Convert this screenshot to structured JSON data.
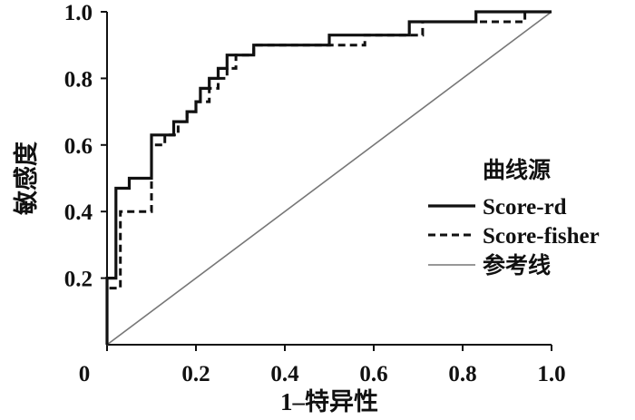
{
  "chart_data": {
    "type": "line",
    "title": "",
    "xlabel": "1–特异性",
    "ylabel": "敏感度",
    "xlim": [
      0,
      1
    ],
    "ylim": [
      0,
      1
    ],
    "x_ticks": [
      "0",
      "0.2",
      "0.4",
      "0.6",
      "0.8",
      "1.0"
    ],
    "y_ticks": [
      "0.2",
      "0.4",
      "0.6",
      "0.8",
      "1.0"
    ],
    "legend_title": "曲线源",
    "legend_position": "right",
    "grid": false,
    "series": [
      {
        "name": "Score-rd",
        "style": "solid",
        "color": "#111111",
        "x": [
          0.0,
          0.0,
          0.02,
          0.02,
          0.05,
          0.05,
          0.1,
          0.1,
          0.15,
          0.15,
          0.18,
          0.18,
          0.2,
          0.2,
          0.21,
          0.21,
          0.23,
          0.23,
          0.25,
          0.25,
          0.27,
          0.27,
          0.29,
          0.29,
          0.31,
          0.31,
          0.33,
          0.33,
          0.5,
          0.5,
          0.68,
          0.68,
          0.83,
          0.83,
          1.0
        ],
        "y": [
          0.0,
          0.2,
          0.2,
          0.47,
          0.47,
          0.5,
          0.5,
          0.63,
          0.63,
          0.67,
          0.67,
          0.7,
          0.7,
          0.73,
          0.73,
          0.77,
          0.77,
          0.8,
          0.8,
          0.83,
          0.83,
          0.87,
          0.87,
          0.87,
          0.87,
          0.87,
          0.87,
          0.9,
          0.9,
          0.93,
          0.93,
          0.97,
          0.97,
          1.0,
          1.0
        ]
      },
      {
        "name": "Score-fisher",
        "style": "dashed",
        "color": "#111111",
        "x": [
          0.0,
          0.0,
          0.03,
          0.03,
          0.1,
          0.1,
          0.13,
          0.13,
          0.16,
          0.16,
          0.18,
          0.18,
          0.2,
          0.2,
          0.23,
          0.23,
          0.25,
          0.25,
          0.27,
          0.27,
          0.29,
          0.29,
          0.33,
          0.33,
          0.58,
          0.58,
          0.63,
          0.63,
          0.71,
          0.71,
          0.94,
          0.94,
          1.0
        ],
        "y": [
          0.0,
          0.17,
          0.17,
          0.4,
          0.4,
          0.6,
          0.6,
          0.63,
          0.63,
          0.67,
          0.67,
          0.7,
          0.7,
          0.73,
          0.73,
          0.77,
          0.77,
          0.8,
          0.8,
          0.83,
          0.83,
          0.87,
          0.87,
          0.9,
          0.9,
          0.93,
          0.93,
          0.93,
          0.93,
          0.97,
          0.97,
          1.0,
          1.0
        ]
      },
      {
        "name": "参考线",
        "style": "solid-thin",
        "color": "#777777",
        "x": [
          0,
          1
        ],
        "y": [
          0,
          1
        ]
      }
    ]
  }
}
